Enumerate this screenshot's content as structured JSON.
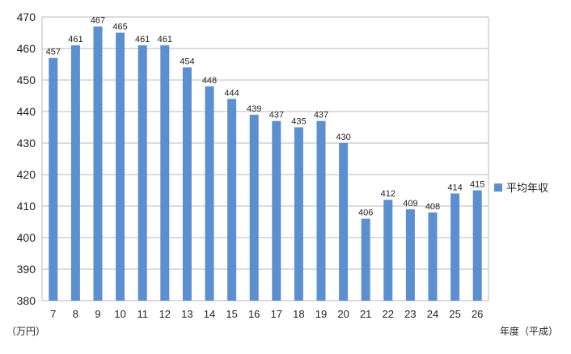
{
  "chart_data": {
    "type": "bar",
    "categories": [
      "7",
      "8",
      "9",
      "10",
      "11",
      "12",
      "13",
      "14",
      "15",
      "16",
      "17",
      "18",
      "19",
      "20",
      "21",
      "22",
      "23",
      "24",
      "25",
      "26"
    ],
    "series": [
      {
        "name": "平均年収",
        "values": [
          457,
          461,
          467,
          465,
          461,
          461,
          454,
          448,
          444,
          439,
          437,
          435,
          437,
          430,
          406,
          412,
          409,
          408,
          414,
          415
        ]
      }
    ],
    "ylim": [
      380,
      470
    ],
    "yticks": [
      380,
      390,
      400,
      410,
      420,
      430,
      440,
      450,
      460,
      470
    ],
    "ylabel": "（万円）",
    "xlabel": "年度（平成）",
    "legend_position": "right",
    "grid": true,
    "bar_color": "#5b8fcf",
    "grid_color": "#b8b8b8"
  }
}
